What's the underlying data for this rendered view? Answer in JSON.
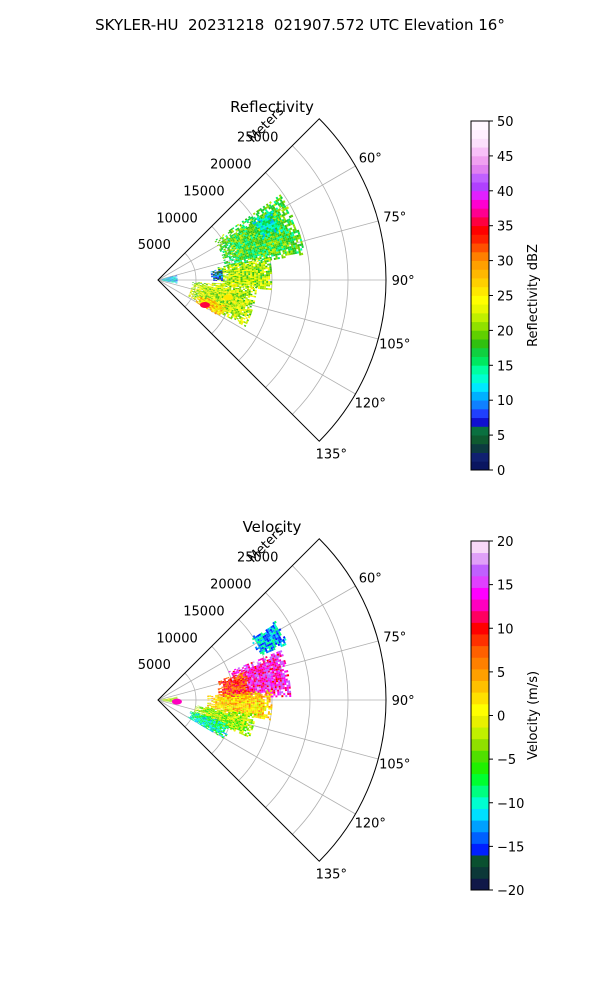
{
  "figure": {
    "title": "SKYLER-HU  20231218  021907.572 UTC Elevation 16°"
  },
  "chart_data": [
    {
      "type": "heatmap",
      "projection": "polar-sector",
      "title": "Reflectivity",
      "field": "reflectivity",
      "radial_axis": {
        "label": "Meters",
        "ticks": [
          5000,
          10000,
          15000,
          20000,
          25000
        ],
        "tick_labels": [
          "5000",
          "10000",
          "15000",
          "20000",
          "25000"
        ],
        "range": [
          0,
          30000
        ]
      },
      "azimuth_axis": {
        "range_deg": [
          45,
          135
        ],
        "ticks_deg": [
          60,
          75,
          90,
          105,
          120,
          135
        ],
        "tick_labels": [
          "60°",
          "75°",
          "90°",
          "105°",
          "120°",
          "135°"
        ]
      },
      "grid": true,
      "colorbar": {
        "label": "Reflectivity dBZ",
        "range": [
          0,
          50
        ],
        "ticks": [
          0,
          5,
          10,
          15,
          20,
          25,
          30,
          35,
          40,
          45,
          50
        ],
        "tick_labels": [
          "0",
          "5",
          "10",
          "15",
          "20",
          "25",
          "30",
          "35",
          "40",
          "45",
          "50"
        ]
      },
      "echo_regions": [
        {
          "az": [
            55,
            80
          ],
          "r": [
            9000,
            19500
          ],
          "value": 18
        },
        {
          "az": [
            78,
            95
          ],
          "r": [
            8000,
            15000
          ],
          "value": 21
        },
        {
          "az": [
            93,
            118
          ],
          "r": [
            4500,
            13000
          ],
          "value": 22
        },
        {
          "az": [
            110,
            120
          ],
          "r": [
            5500,
            9500
          ],
          "value": 27
        },
        {
          "az": [
            58,
            68
          ],
          "r": [
            14500,
            17500
          ],
          "value": 14
        },
        {
          "az": [
            75,
            100
          ],
          "r": [
            500,
            2500
          ],
          "value": 12
        },
        {
          "az": [
            80,
            90
          ],
          "r": [
            7000,
            8500
          ],
          "value": 7
        }
      ],
      "hot_spots": [
        {
          "az": 118,
          "r": 7000,
          "value": 36
        },
        {
          "az": 104,
          "r": 9500,
          "value": 26
        }
      ]
    },
    {
      "type": "heatmap",
      "projection": "polar-sector",
      "title": "Velocity",
      "field": "velocity",
      "radial_axis": {
        "label": "Meters",
        "ticks": [
          5000,
          10000,
          15000,
          20000,
          25000
        ],
        "tick_labels": [
          "5000",
          "10000",
          "15000",
          "20000",
          "25000"
        ],
        "range": [
          0,
          30000
        ]
      },
      "azimuth_axis": {
        "range_deg": [
          45,
          135
        ],
        "ticks_deg": [
          60,
          75,
          90,
          105,
          120,
          135
        ],
        "tick_labels": [
          "60°",
          "75°",
          "90°",
          "105°",
          "120°",
          "135°"
        ]
      },
      "grid": true,
      "colorbar": {
        "label": "Velocity (m/s)",
        "range": [
          -20,
          20
        ],
        "ticks": [
          -20,
          -15,
          -10,
          -5,
          0,
          5,
          10,
          15,
          20
        ],
        "tick_labels": [
          "−20",
          "−15",
          "−10",
          "−5",
          "0",
          "5",
          "10",
          "15",
          "20"
        ]
      },
      "echo_regions": [
        {
          "az": [
            56,
            66
          ],
          "r": [
            14500,
            18500
          ],
          "value": -12
        },
        {
          "az": [
            68,
            88
          ],
          "r": [
            10000,
            17500
          ],
          "value": 14
        },
        {
          "az": [
            72,
            90
          ],
          "r": [
            8000,
            12000
          ],
          "value": 8
        },
        {
          "az": [
            85,
            100
          ],
          "r": [
            6500,
            15000
          ],
          "value": 2
        },
        {
          "az": [
            98,
            112
          ],
          "r": [
            5000,
            13000
          ],
          "value": -3
        },
        {
          "az": [
            108,
            120
          ],
          "r": [
            4500,
            10000
          ],
          "value": -9
        },
        {
          "az": [
            80,
            100
          ],
          "r": [
            500,
            2500
          ],
          "value": -2
        }
      ],
      "hot_spots": [
        {
          "az": 95,
          "r": 2500,
          "value": 12
        }
      ]
    }
  ]
}
